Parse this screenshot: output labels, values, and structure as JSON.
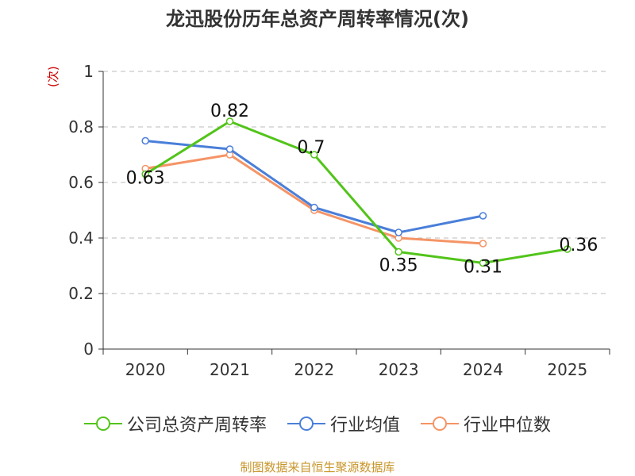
{
  "chart_data": {
    "type": "line",
    "title": "龙迅股份历年总资产周转率情况(次)",
    "ylabel": "(次)",
    "categories": [
      "2020",
      "2021",
      "2022",
      "2023",
      "2024",
      "2025"
    ],
    "ylim": [
      0,
      1
    ],
    "yticks": [
      "0",
      "0.2",
      "0.4",
      "0.6",
      "0.8",
      "1"
    ],
    "yticks_values": [
      0,
      0.2,
      0.4,
      0.6,
      0.8,
      1
    ],
    "series": [
      {
        "name": "公司总资产周转率",
        "color": "#52c41a",
        "values": [
          0.63,
          0.82,
          0.7,
          0.35,
          0.31,
          0.36
        ],
        "labels": [
          "0.63",
          "0.82",
          "0.7",
          "0.35",
          "0.31",
          "0.36"
        ]
      },
      {
        "name": "行业均值",
        "color": "#4a7fd9",
        "values": [
          0.75,
          0.72,
          0.51,
          0.42,
          0.48,
          null
        ]
      },
      {
        "name": "行业中位数",
        "color": "#f59466",
        "values": [
          0.65,
          0.7,
          0.5,
          0.4,
          0.38,
          null
        ]
      }
    ]
  },
  "source": "制图数据来自恒生聚源数据库"
}
